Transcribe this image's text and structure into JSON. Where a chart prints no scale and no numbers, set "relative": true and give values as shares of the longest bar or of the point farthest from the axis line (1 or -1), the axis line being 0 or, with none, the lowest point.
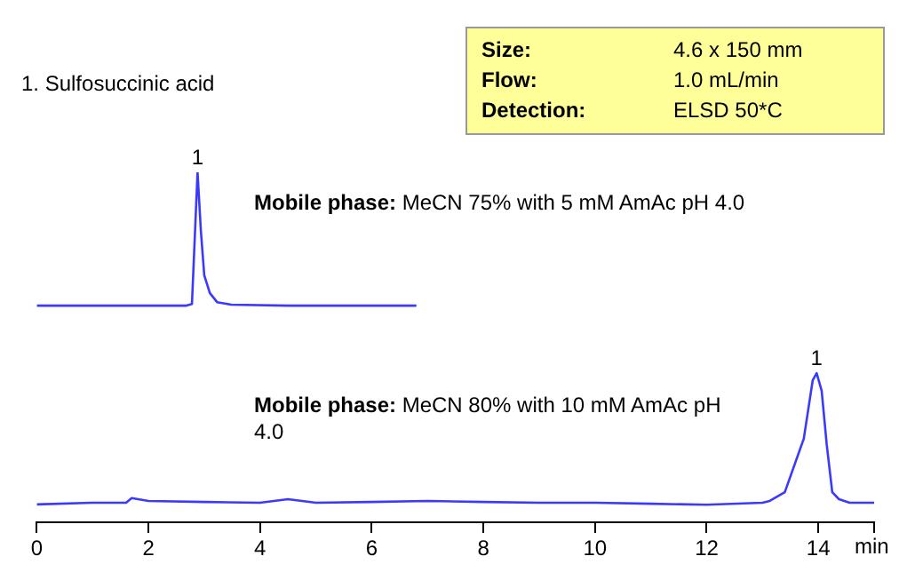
{
  "chart_data": {
    "type": "line",
    "relative": true,
    "xlabel": "min",
    "xlim": [
      0,
      15
    ],
    "xticks": [
      0,
      2,
      4,
      6,
      8,
      10,
      12,
      14,
      {
        "value": 15,
        "label": null
      }
    ],
    "grid": false,
    "legend": false,
    "marker": "none",
    "tick_labels": "x",
    "series": [
      {
        "color": "#3a3aff",
        "x": [
          0,
          1,
          2,
          2.68,
          2.78,
          2.88,
          2.94,
          3.0,
          3.1,
          3.23,
          3.48,
          4.5,
          5.5,
          6.8
        ],
        "values": [
          0.619,
          0.619,
          0.619,
          0.619,
          0.624,
          1,
          0.832,
          0.706,
          0.655,
          0.629,
          0.622,
          0.619,
          0.619,
          0.619
        ]
      },
      {
        "color": "#3a3aff",
        "x": [
          0,
          1,
          1.6,
          1.7,
          2,
          3,
          4,
          4.5,
          5,
          6,
          7,
          8,
          9,
          10,
          11,
          12,
          13,
          13.13,
          13.4,
          13.74,
          13.9,
          13.97,
          14.06,
          14.15,
          14.25,
          14.37,
          14.56,
          15
        ],
        "values": [
          0.051,
          0.056,
          0.056,
          0.069,
          0.061,
          0.058,
          0.056,
          0.066,
          0.056,
          0.058,
          0.061,
          0.058,
          0.056,
          0.056,
          0.053,
          0.05,
          0.056,
          0.061,
          0.086,
          0.239,
          0.406,
          0.426,
          0.376,
          0.223,
          0.086,
          0.066,
          0.056,
          0.056
        ]
      }
    ],
    "annotations": [
      "1. Sulfosuccinic acid",
      "Size: 4.6 x 150 mm",
      "Flow: 1.0 mL/min",
      "Detection: ELSD 50*C",
      "Mobile phase: MeCN 75% with 5 mM AmAc pH 4.0",
      "Mobile phase: MeCN 80% with 10 mM AmAc pH 4.0",
      {
        "text": "1",
        "x": 2.88,
        "y": 1
      },
      {
        "text": "1",
        "x": 13.97,
        "y": 0.426
      }
    ]
  }
}
